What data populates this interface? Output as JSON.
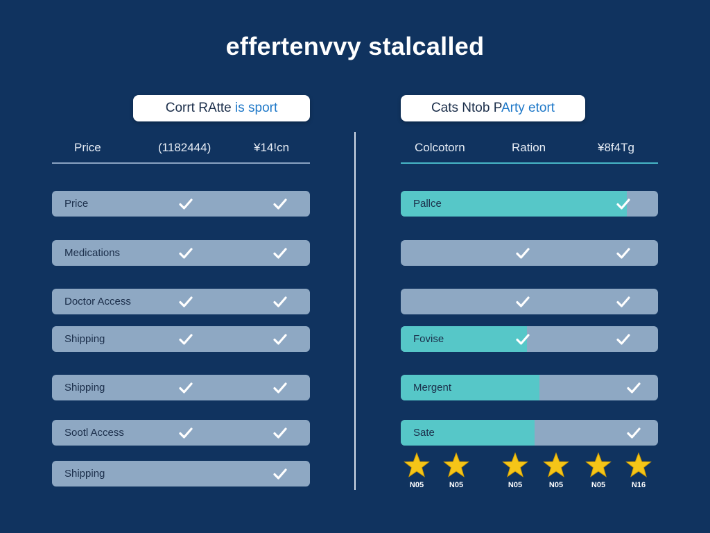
{
  "page": {
    "title": "effertenvvy stalcalled"
  },
  "colors": {
    "background": "#10335f",
    "row": "#8ea8c3",
    "teal": "#56c7c8",
    "star": "#f5c518",
    "check": "#ffffff"
  },
  "left_panel": {
    "title_part1": "Corrt RAtte ",
    "title_accent": "is sport",
    "headers": [
      "Price",
      "(1182444)",
      "¥14!cn"
    ],
    "rows": [
      {
        "label": "Price",
        "col1_check": true,
        "col2_check": true
      },
      {
        "label": "Medications",
        "col1_check": true,
        "col2_check": true
      },
      {
        "label": "Doctor Access",
        "col1_check": true,
        "col2_check": true
      },
      {
        "label": "Shipping",
        "col1_check": true,
        "col2_check": true
      },
      {
        "label": "Shipping",
        "col1_check": true,
        "col2_check": true
      },
      {
        "label": "Sootl Access",
        "col1_check": true,
        "col2_check": true
      },
      {
        "label": "Shipping",
        "col1_check": false,
        "col2_check": true
      }
    ]
  },
  "right_panel": {
    "title_part1": "Cats Ntob P",
    "title_accent": "Arty etort",
    "headers": [
      "Colcotorn",
      "Ration",
      "¥8f4Tg"
    ],
    "rows": [
      {
        "label": "Pallce",
        "fill_fraction": 0.88,
        "col1_check": false,
        "col2_check": true
      },
      {
        "label": "",
        "fill_fraction": 0,
        "col1_check": true,
        "col2_check": true
      },
      {
        "label": "",
        "fill_fraction": 0,
        "col1_check": true,
        "col2_check": true
      },
      {
        "label": "Fovise",
        "fill_fraction": 0.49,
        "col1_check": true,
        "col2_check": true
      },
      {
        "label": "Mergent",
        "fill_fraction": 0.54,
        "col1_check": false,
        "col2_check": true
      },
      {
        "label": "Sate",
        "fill_fraction": 0.52,
        "col1_check": false,
        "col2_check": true
      }
    ],
    "ratings": [
      {
        "label": "N05"
      },
      {
        "label": "N05"
      },
      {
        "label": "N05"
      },
      {
        "label": "N05"
      },
      {
        "label": "N05"
      },
      {
        "label": "N16"
      }
    ]
  }
}
